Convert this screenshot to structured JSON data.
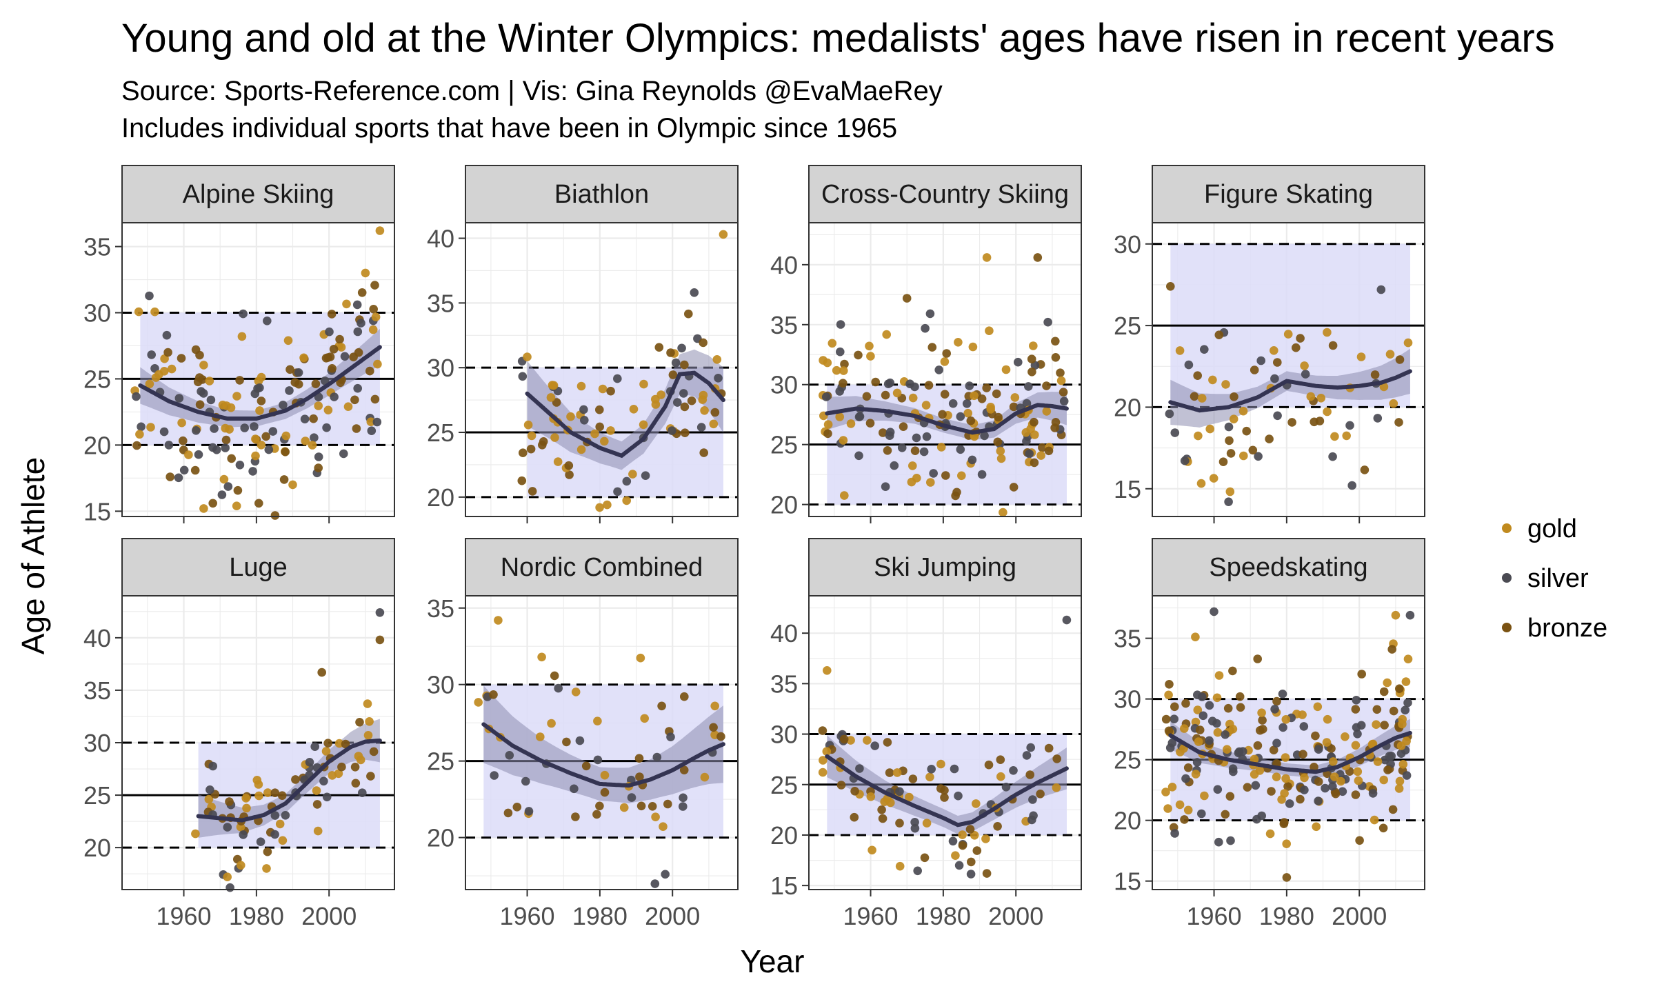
{
  "title": "Young and old at the Winter Olympics: medalists' ages have risen in recent years",
  "subtitle_source": "Source: Sports-Reference.com | Vis: Gina Reynolds @EvaMaeRey",
  "subtitle_note": "Includes individual sports that have been in Olympic since 1965",
  "chart_data": {
    "type": "scatter",
    "xlabel": "Year",
    "ylabel": "Age of Athlete",
    "xticks": [
      1960,
      1980,
      2000
    ],
    "xlim": [
      1943,
      2018
    ],
    "legend": {
      "position": "right",
      "entries": [
        {
          "name": "gold",
          "color": "#C08A1E"
        },
        {
          "name": "silver",
          "color": "#4A4A52"
        },
        {
          "name": "bronze",
          "color": "#7A5212"
        }
      ]
    },
    "reference_lines": {
      "solid": "panel typical age",
      "dashed": "panel age band"
    },
    "colors": {
      "smooth": "#343452",
      "ribbon": "#8E8EB0",
      "band": "#DCDCF8",
      "strip": "#D3D3D3"
    },
    "panels": [
      {
        "name": "Alpine Skiing",
        "ylim": [
          14.6,
          36.8
        ],
        "yticks": [
          15,
          20,
          25,
          30,
          35
        ],
        "band": {
          "x0": 1948,
          "x1": 2014,
          "low": 20,
          "high": 30
        },
        "mid": 25,
        "smooth": [
          [
            1948,
            24.5
          ],
          [
            1956,
            23.3
          ],
          [
            1964,
            22.5
          ],
          [
            1972,
            22.0
          ],
          [
            1980,
            22.0
          ],
          [
            1988,
            22.6
          ],
          [
            1994,
            23.5
          ],
          [
            2000,
            24.6
          ],
          [
            2006,
            25.8
          ],
          [
            2010,
            26.6
          ],
          [
            2014,
            27.4
          ]
        ],
        "se": 0.6,
        "n": 170,
        "seed": 11,
        "yspread": 3.6,
        "extras": [
          [
            2014,
            36.2
          ],
          [
            1968,
            15.6
          ],
          [
            1990,
            17.0
          ],
          [
            2010,
            33.0
          ]
        ]
      },
      {
        "name": "Biathlon",
        "ylim": [
          18.5,
          41.2
        ],
        "yticks": [
          20,
          25,
          30,
          35,
          40
        ],
        "band": {
          "x0": 1960,
          "x1": 2014,
          "low": 20,
          "high": 30
        },
        "mid": 25,
        "smooth": [
          [
            1960,
            28.0
          ],
          [
            1966,
            26.5
          ],
          [
            1972,
            25.0
          ],
          [
            1980,
            23.8
          ],
          [
            1986,
            23.2
          ],
          [
            1992,
            24.5
          ],
          [
            1998,
            27.0
          ],
          [
            2002,
            29.5
          ],
          [
            2006,
            29.6
          ],
          [
            2010,
            28.8
          ],
          [
            2014,
            27.5
          ]
        ],
        "se": 1.1,
        "n": 90,
        "seed": 23,
        "yspread": 3.2,
        "extras": [
          [
            2014,
            40.3
          ],
          [
            1982,
            19.4
          ],
          [
            2006,
            35.8
          ]
        ]
      },
      {
        "name": "Cross-Country Skiing",
        "ylim": [
          19.0,
          43.5
        ],
        "yticks": [
          20,
          25,
          30,
          35,
          40
        ],
        "band": {
          "x0": 1948,
          "x1": 2014,
          "low": 20,
          "high": 30
        },
        "mid": 25,
        "smooth": [
          [
            1948,
            27.6
          ],
          [
            1956,
            28.0
          ],
          [
            1964,
            27.8
          ],
          [
            1972,
            27.4
          ],
          [
            1980,
            26.6
          ],
          [
            1988,
            26.0
          ],
          [
            1994,
            26.3
          ],
          [
            2000,
            27.6
          ],
          [
            2006,
            28.3
          ],
          [
            2010,
            28.2
          ],
          [
            2014,
            28.0
          ]
        ],
        "se": 0.6,
        "n": 170,
        "seed": 37,
        "yspread": 3.4,
        "extras": [
          [
            1992,
            40.6
          ],
          [
            2006,
            40.6
          ],
          [
            1970,
            37.2
          ]
        ]
      },
      {
        "name": "Figure Skating",
        "ylim": [
          13.3,
          31.3
        ],
        "yticks": [
          15,
          20,
          25,
          30
        ],
        "band": {
          "x0": 1948,
          "x1": 2014,
          "low": 20,
          "high": 30
        },
        "mid": 25,
        "smooth": [
          [
            1948,
            20.3
          ],
          [
            1956,
            19.8
          ],
          [
            1964,
            20.0
          ],
          [
            1972,
            20.6
          ],
          [
            1980,
            21.6
          ],
          [
            1988,
            21.3
          ],
          [
            1994,
            21.2
          ],
          [
            2000,
            21.3
          ],
          [
            2006,
            21.5
          ],
          [
            2010,
            21.8
          ],
          [
            2014,
            22.2
          ]
        ],
        "se": 0.6,
        "n": 70,
        "seed": 41,
        "yspread": 2.8,
        "extras": [
          [
            1948,
            27.4
          ],
          [
            1964,
            14.2
          ],
          [
            1998,
            15.2
          ],
          [
            2006,
            27.2
          ]
        ]
      },
      {
        "name": "Luge",
        "ylim": [
          16.0,
          44.0
        ],
        "yticks": [
          20,
          25,
          30,
          35,
          40
        ],
        "band": {
          "x0": 1964,
          "x1": 2014,
          "low": 20,
          "high": 30
        },
        "mid": 25,
        "smooth": [
          [
            1964,
            23.0
          ],
          [
            1970,
            22.8
          ],
          [
            1976,
            22.6
          ],
          [
            1982,
            23.1
          ],
          [
            1988,
            24.2
          ],
          [
            1994,
            26.2
          ],
          [
            2000,
            28.2
          ],
          [
            2006,
            29.6
          ],
          [
            2010,
            30.1
          ],
          [
            2014,
            30.2
          ]
        ],
        "se": 0.9,
        "n": 80,
        "seed": 53,
        "yspread": 2.6,
        "extras": [
          [
            2014,
            42.4
          ],
          [
            2014,
            39.8
          ],
          [
            1972,
            17.2
          ],
          [
            1998,
            36.7
          ]
        ]
      },
      {
        "name": "Nordic Combined",
        "ylim": [
          16.6,
          35.8
        ],
        "yticks": [
          20,
          25,
          30,
          35
        ],
        "band": {
          "x0": 1948,
          "x1": 2014,
          "low": 20,
          "high": 30
        },
        "mid": 25,
        "smooth": [
          [
            1948,
            27.4
          ],
          [
            1956,
            26.0
          ],
          [
            1964,
            25.0
          ],
          [
            1972,
            24.2
          ],
          [
            1980,
            23.5
          ],
          [
            1988,
            23.4
          ],
          [
            1994,
            23.8
          ],
          [
            2000,
            24.4
          ],
          [
            2006,
            25.2
          ],
          [
            2010,
            25.7
          ],
          [
            2014,
            26.1
          ]
        ],
        "se": 1.1,
        "n": 60,
        "seed": 67,
        "yspread": 3.0,
        "extras": [
          [
            1952,
            34.2
          ],
          [
            1998,
            17.6
          ],
          [
            1964,
            31.8
          ]
        ]
      },
      {
        "name": "Ski Jumping",
        "ylim": [
          14.6,
          43.7
        ],
        "yticks": [
          15,
          20,
          25,
          30,
          35,
          40
        ],
        "band": {
          "x0": 1948,
          "x1": 2014,
          "low": 20,
          "high": 30
        },
        "mid": 25,
        "smooth": [
          [
            1948,
            27.8
          ],
          [
            1956,
            25.8
          ],
          [
            1964,
            24.2
          ],
          [
            1972,
            22.9
          ],
          [
            1980,
            21.7
          ],
          [
            1984,
            21.0
          ],
          [
            1988,
            21.3
          ],
          [
            1994,
            22.6
          ],
          [
            2000,
            24.0
          ],
          [
            2006,
            25.2
          ],
          [
            2010,
            25.9
          ],
          [
            2014,
            26.6
          ]
        ],
        "se": 0.9,
        "n": 90,
        "seed": 79,
        "yspread": 2.6,
        "extras": [
          [
            2014,
            41.3
          ],
          [
            1948,
            36.3
          ],
          [
            1992,
            16.2
          ]
        ]
      },
      {
        "name": "Speedskating",
        "ylim": [
          14.3,
          38.5
        ],
        "yticks": [
          15,
          20,
          25,
          30,
          35
        ],
        "band": {
          "x0": 1948,
          "x1": 2014,
          "low": 20,
          "high": 30
        },
        "mid": 25,
        "smooth": [
          [
            1948,
            27.0
          ],
          [
            1956,
            25.6
          ],
          [
            1964,
            25.0
          ],
          [
            1972,
            24.6
          ],
          [
            1980,
            24.2
          ],
          [
            1988,
            24.0
          ],
          [
            1994,
            24.4
          ],
          [
            2000,
            25.2
          ],
          [
            2006,
            26.2
          ],
          [
            2010,
            26.8
          ],
          [
            2014,
            27.2
          ]
        ],
        "se": 0.5,
        "n": 230,
        "seed": 97,
        "yspread": 3.3,
        "extras": [
          [
            1960,
            37.2
          ],
          [
            2010,
            36.9
          ],
          [
            2014,
            36.9
          ],
          [
            1980,
            15.3
          ],
          [
            1972,
            33.3
          ]
        ]
      }
    ]
  }
}
